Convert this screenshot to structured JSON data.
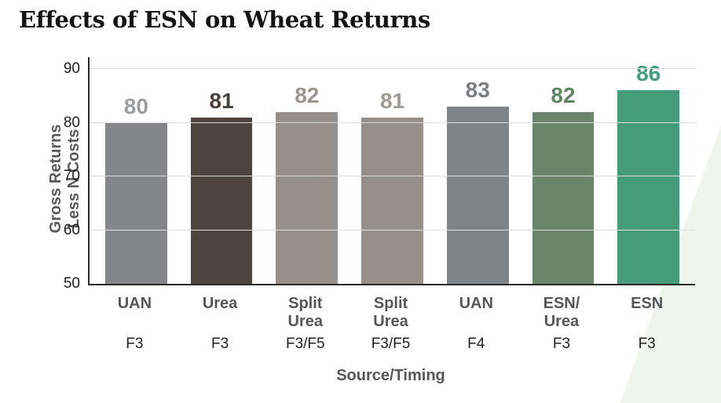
{
  "title": "Effects of ESN on Wheat Returns",
  "chart_data": {
    "type": "bar",
    "title": "Effects of ESN on Wheat Returns",
    "xlabel": "Source/Timing",
    "ylabel": "Gross Returns\nLess N Costs",
    "ylim": [
      50,
      90
    ],
    "yticks": [
      50,
      60,
      70,
      80,
      90
    ],
    "grid": true,
    "legend": false,
    "categories": [
      "UAN",
      "Urea",
      "Split\nUrea",
      "Split\nUrea",
      "UAN",
      "ESN/\nUrea",
      "ESN"
    ],
    "timings": [
      "F3",
      "F3",
      "F3/F5",
      "F3/F5",
      "F4",
      "F3",
      "F3"
    ],
    "values": [
      80,
      81,
      82,
      81,
      83,
      82,
      86
    ],
    "bar_colors": [
      "#84868a",
      "#4e443e",
      "#968f8a",
      "#968f8a",
      "#808387",
      "#69856a",
      "#459c7b"
    ],
    "label_colors": [
      "#9b9da1",
      "#4a413b",
      "#9c958f",
      "#a19a95",
      "#7c7f83",
      "#5b8660",
      "#41a07c"
    ]
  },
  "colors": {
    "axis_line": "#2a2a2a",
    "gridline": "#dddcdb",
    "title_text": "#141414",
    "axis_label_text": "#54565a",
    "tick_text": "#1f1f1f",
    "wedge": "#eff5ec"
  }
}
